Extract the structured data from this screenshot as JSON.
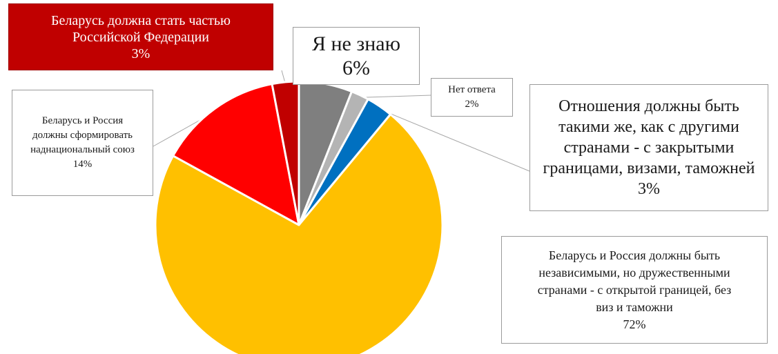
{
  "chart_data": {
    "type": "pie",
    "title": "",
    "start_angle_deg": 0,
    "direction": "clockwise",
    "slices": [
      {
        "label": "Я не знаю",
        "value": 6,
        "value_label": "6%",
        "color": "#7f7f7f"
      },
      {
        "label": "Нет ответа",
        "value": 2,
        "value_label": "2%",
        "color": "#b4b4b4"
      },
      {
        "label": "Отношения должны быть такими же, как с другими странами - с закрытыми границами, визами, таможней",
        "value": 3,
        "value_label": "3%",
        "color": "#0070c0"
      },
      {
        "label": "Беларусь и Россия должны быть независимыми, но дружественными странами - с открытой границей, без виз и таможни",
        "value": 72,
        "value_label": "72%",
        "color": "#ffc000"
      },
      {
        "label": "Беларусь и Россия должны сформировать наднациональный союз",
        "value": 14,
        "value_label": "14%",
        "color": "#ff0000"
      },
      {
        "label": "Беларусь должна стать частью Российской Федерации",
        "value": 3,
        "value_label": "3%",
        "color": "#c00000"
      }
    ]
  },
  "labels": {
    "russia": {
      "lines": [
        "Беларусь должна стать частью",
        "Российской Федерации"
      ],
      "pct": "3%"
    },
    "dontknow": {
      "lines": [
        "Я не знаю"
      ],
      "pct": "6%"
    },
    "noanswer": {
      "lines": [
        "Нет ответа"
      ],
      "pct": "2%"
    },
    "closed": {
      "lines": [
        "Отношения должны быть",
        "такими же, как с другими",
        "странами - с закрытыми",
        "границами, визами, таможней"
      ],
      "pct": "3%"
    },
    "union": {
      "lines": [
        "Беларусь и Россия",
        "должны сформировать",
        "наднациональный союз"
      ],
      "pct": "14%"
    },
    "independent": {
      "lines": [
        "Беларусь и Россия должны быть",
        "независимыми, но дружественными",
        "странами - с открытой границей, без",
        "виз и таможни"
      ],
      "pct": "72%"
    }
  }
}
